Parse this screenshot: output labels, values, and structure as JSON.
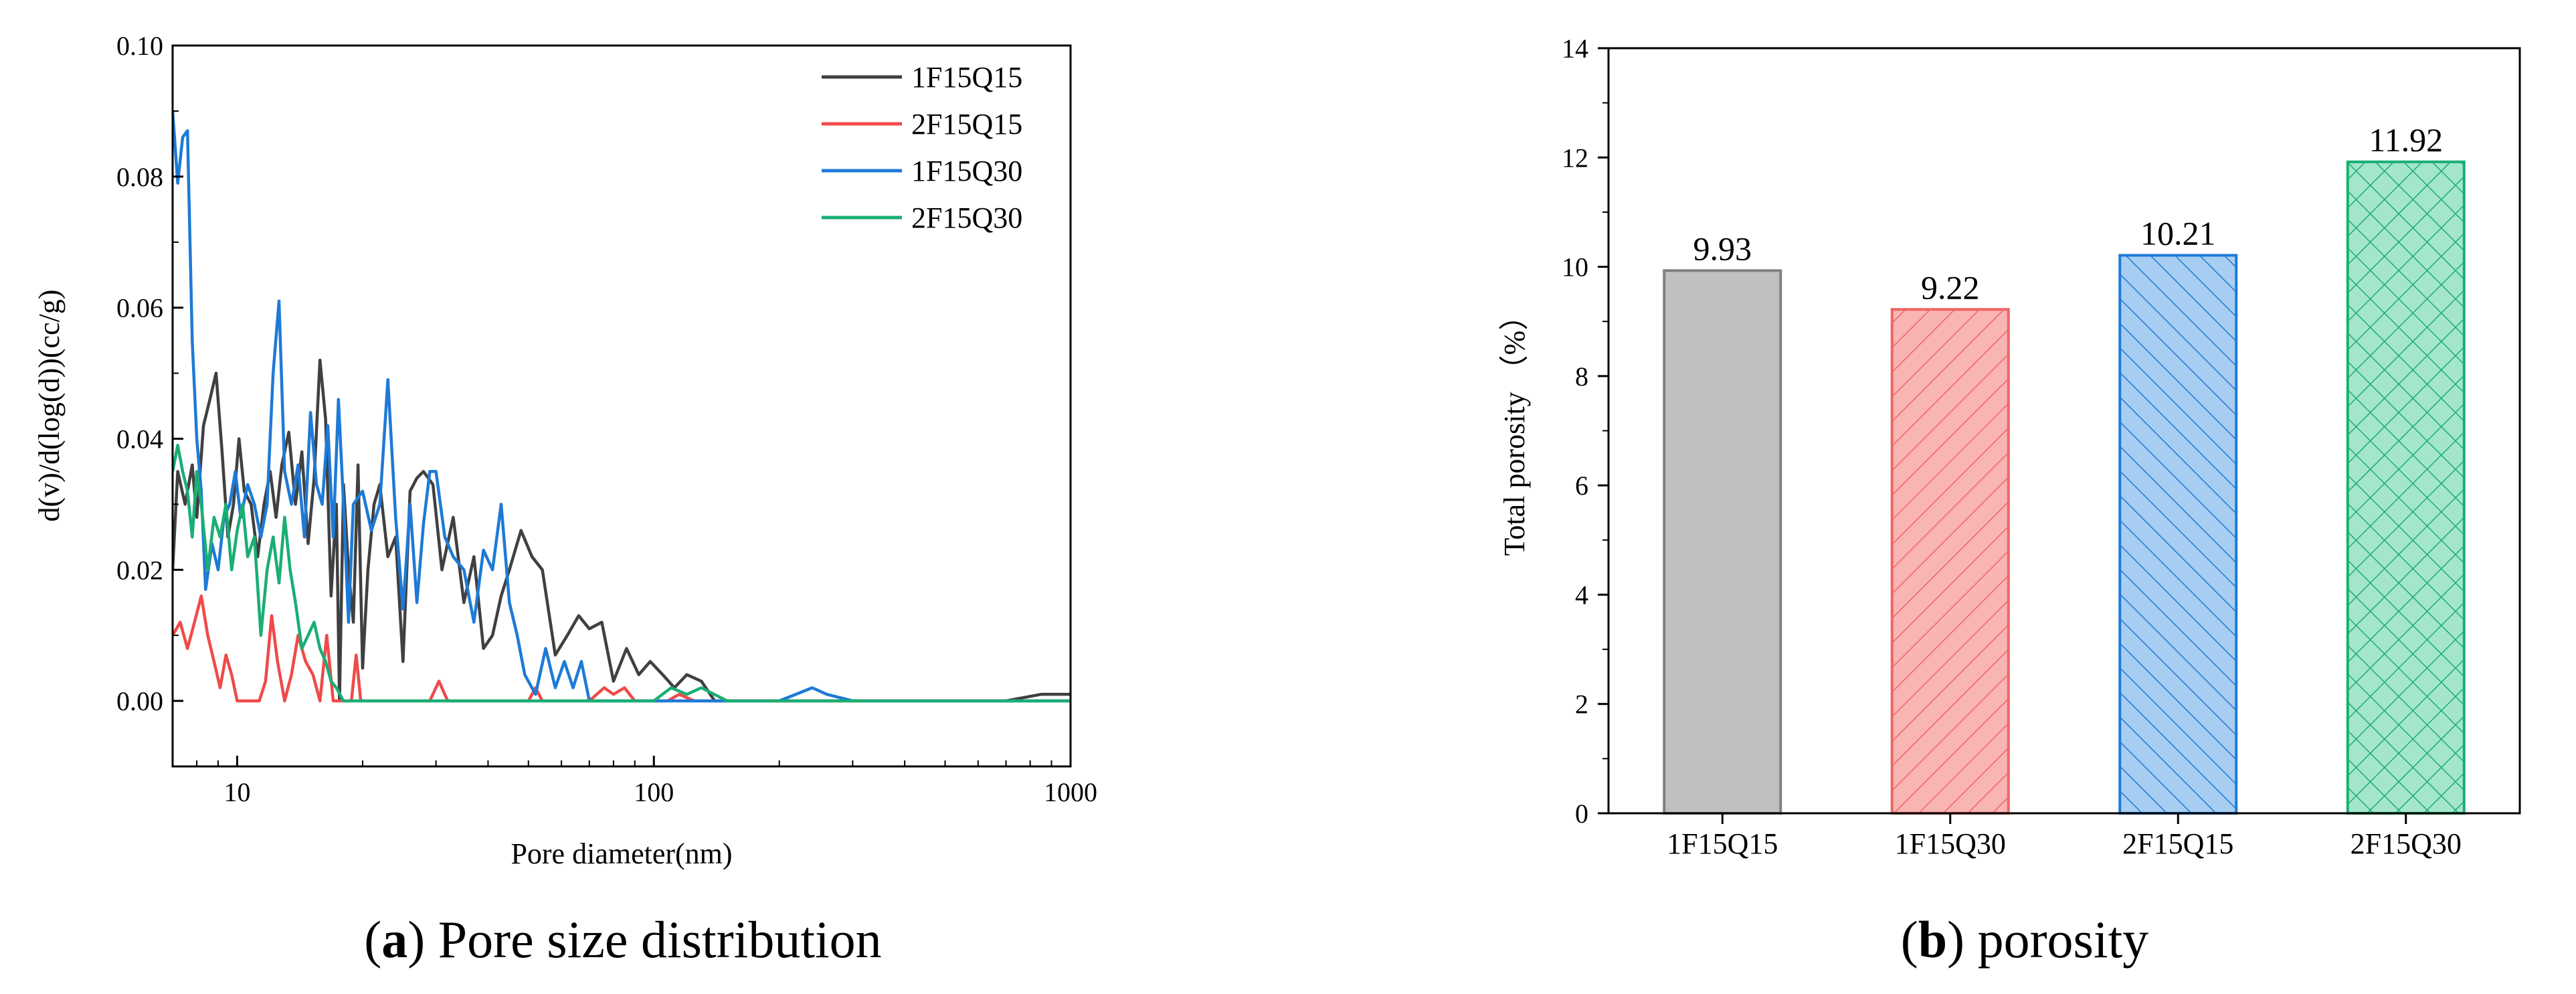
{
  "figure": {
    "colors": {
      "black": "#404040",
      "red": "#f04a4a",
      "blue": "#1e7ad6",
      "green": "#1aae74",
      "gray_fill": "#c0c0c0",
      "gray_edge": "#808080",
      "red_fill": "#f9b4b4",
      "red_edge": "#f06464",
      "blue_fill": "#a8cdf2",
      "blue_edge": "#1e7ad6",
      "green_fill": "#a4e6cc",
      "green_edge": "#1aae74"
    },
    "captions": {
      "a_letter": "a",
      "a_text": ") Pore size distribution",
      "a_open": "(",
      "b_letter": "b",
      "b_text": ") porosity",
      "b_open": "("
    }
  },
  "chart_data": [
    {
      "type": "line",
      "panel": "a",
      "title": "Pore size distribution",
      "xlabel": "Pore diameter(nm)",
      "ylabel": "d(v)/d(log(d))(cc/g)",
      "xscale": "log",
      "xlim": [
        7,
        1000
      ],
      "ylim": [
        -0.01,
        0.1
      ],
      "xticks": [
        10,
        100,
        1000
      ],
      "xtick_labels": [
        "10",
        "100",
        "1000"
      ],
      "yticks": [
        0.0,
        0.02,
        0.04,
        0.06,
        0.08,
        0.1
      ],
      "ytick_labels": [
        "0.00",
        "0.02",
        "0.04",
        "0.06",
        "0.08",
        "0.10"
      ],
      "legend_position": "top-right",
      "series": [
        {
          "name": "1F15Q15",
          "color_key": "black",
          "x": [
            7.0,
            7.2,
            7.5,
            7.8,
            8.0,
            8.3,
            8.6,
            8.9,
            9.2,
            9.5,
            9.8,
            10.1,
            10.4,
            10.8,
            11.2,
            11.6,
            12.0,
            12.4,
            12.8,
            13.3,
            13.8,
            14.3,
            14.8,
            15.3,
            15.8,
            16.3,
            16.8,
            17.3,
            17.6,
            18.0,
            18.5,
            19.0,
            19.5,
            20.0,
            20.6,
            21.3,
            22.0,
            23.0,
            24.0,
            25.0,
            26.0,
            27.0,
            28.0,
            29.5,
            31.0,
            33.0,
            35.0,
            37.0,
            39.0,
            41.0,
            43.0,
            45.0,
            48.0,
            51.0,
            54.0,
            58.0,
            62.0,
            66.0,
            70.0,
            75.0,
            80.0,
            86.0,
            92.0,
            98.0,
            105.0,
            112.0,
            120.0,
            130.0,
            140.0,
            160.0,
            200.0,
            300.0,
            500.0,
            700.0,
            850.0,
            1000.0
          ],
          "y": [
            0.02,
            0.035,
            0.03,
            0.036,
            0.028,
            0.042,
            0.046,
            0.05,
            0.038,
            0.025,
            0.03,
            0.04,
            0.032,
            0.03,
            0.022,
            0.03,
            0.035,
            0.028,
            0.036,
            0.041,
            0.03,
            0.038,
            0.024,
            0.034,
            0.052,
            0.043,
            0.016,
            0.03,
            0.0,
            0.033,
            0.02,
            0.012,
            0.036,
            0.005,
            0.02,
            0.03,
            0.033,
            0.022,
            0.025,
            0.006,
            0.032,
            0.034,
            0.035,
            0.033,
            0.02,
            0.028,
            0.015,
            0.022,
            0.008,
            0.01,
            0.016,
            0.02,
            0.026,
            0.022,
            0.02,
            0.007,
            0.01,
            0.013,
            0.011,
            0.012,
            0.003,
            0.008,
            0.004,
            0.006,
            0.004,
            0.002,
            0.004,
            0.003,
            0.0,
            0.0,
            0.0,
            0.0,
            0.0,
            0.0,
            0.001,
            0.001
          ]
        },
        {
          "name": "2F15Q15",
          "color_key": "red",
          "x": [
            7.0,
            7.3,
            7.6,
            7.9,
            8.2,
            8.5,
            8.8,
            9.1,
            9.4,
            9.7,
            10.0,
            10.4,
            10.8,
            11.3,
            11.7,
            12.1,
            12.5,
            13.0,
            13.5,
            14.0,
            14.6,
            15.2,
            15.8,
            16.4,
            17.0,
            17.6,
            18.2,
            18.8,
            19.3,
            19.8,
            20.3,
            21.0,
            25.0,
            29.0,
            30.5,
            32.0,
            40.0,
            50.0,
            52.0,
            54.0,
            60.0,
            70.0,
            76.0,
            80.0,
            85.0,
            90.0,
            100.0,
            108.0,
            115.0,
            125.0,
            200.0,
            500.0,
            1000.0
          ],
          "y": [
            0.01,
            0.012,
            0.008,
            0.012,
            0.016,
            0.01,
            0.006,
            0.002,
            0.007,
            0.004,
            0.0,
            0.0,
            0.0,
            0.0,
            0.003,
            0.013,
            0.006,
            0.0,
            0.004,
            0.01,
            0.006,
            0.004,
            0.0,
            0.01,
            0.0,
            0.0,
            0.0,
            0.0,
            0.007,
            0.0,
            0.0,
            0.0,
            0.0,
            0.0,
            0.003,
            0.0,
            0.0,
            0.0,
            0.002,
            0.0,
            0.0,
            0.0,
            0.002,
            0.001,
            0.002,
            0.0,
            0.0,
            0.0,
            0.001,
            0.0,
            0.0,
            0.0,
            0.0
          ]
        },
        {
          "name": "1F15Q30",
          "color_key": "blue",
          "x": [
            7.0,
            7.2,
            7.4,
            7.6,
            7.8,
            8.0,
            8.2,
            8.4,
            8.7,
            9.0,
            9.3,
            9.6,
            9.9,
            10.2,
            10.6,
            11.0,
            11.4,
            11.8,
            12.2,
            12.6,
            13.0,
            13.5,
            14.0,
            14.5,
            15.0,
            15.5,
            16.0,
            16.5,
            17.0,
            17.5,
            18.0,
            18.5,
            19.0,
            20.0,
            21.0,
            22.0,
            23.0,
            24.0,
            25.0,
            26.0,
            27.0,
            28.0,
            29.0,
            30.0,
            31.5,
            33.0,
            35.0,
            37.0,
            39.0,
            41.0,
            43.0,
            45.0,
            47.0,
            49.0,
            52.0,
            55.0,
            58.0,
            61.0,
            64.0,
            67.0,
            70.0,
            80.0,
            100.0,
            130.0,
            160.0,
            200.0,
            240.0,
            260.0,
            300.0,
            400.0,
            600.0,
            1000.0
          ],
          "y": [
            0.09,
            0.079,
            0.086,
            0.087,
            0.055,
            0.04,
            0.032,
            0.017,
            0.024,
            0.02,
            0.028,
            0.03,
            0.035,
            0.028,
            0.033,
            0.03,
            0.025,
            0.03,
            0.05,
            0.061,
            0.035,
            0.03,
            0.036,
            0.025,
            0.044,
            0.033,
            0.03,
            0.042,
            0.025,
            0.046,
            0.03,
            0.012,
            0.03,
            0.032,
            0.026,
            0.03,
            0.049,
            0.028,
            0.014,
            0.03,
            0.015,
            0.027,
            0.035,
            0.035,
            0.025,
            0.022,
            0.02,
            0.012,
            0.023,
            0.02,
            0.03,
            0.015,
            0.01,
            0.004,
            0.001,
            0.008,
            0.002,
            0.006,
            0.002,
            0.006,
            0.0,
            0.0,
            0.0,
            0.0,
            0.0,
            0.0,
            0.002,
            0.001,
            0.0,
            0.0,
            0.0,
            0.0
          ]
        },
        {
          "name": "2F15Q30",
          "color_key": "green",
          "x": [
            7.0,
            7.2,
            7.4,
            7.6,
            7.8,
            8.0,
            8.2,
            8.5,
            8.8,
            9.1,
            9.4,
            9.7,
            10.0,
            10.3,
            10.6,
            11.0,
            11.4,
            11.8,
            12.2,
            12.6,
            13.0,
            13.4,
            13.8,
            14.3,
            14.8,
            15.3,
            15.8,
            16.3,
            16.8,
            17.3,
            18.0,
            20.0,
            30.0,
            50.0,
            80.0,
            100.0,
            110.0,
            120.0,
            130.0,
            150.0,
            300.0,
            1000.0
          ],
          "y": [
            0.035,
            0.039,
            0.035,
            0.032,
            0.025,
            0.035,
            0.03,
            0.02,
            0.028,
            0.025,
            0.03,
            0.02,
            0.026,
            0.03,
            0.022,
            0.025,
            0.01,
            0.02,
            0.025,
            0.018,
            0.028,
            0.02,
            0.015,
            0.008,
            0.01,
            0.012,
            0.008,
            0.006,
            0.003,
            0.002,
            0.0,
            0.0,
            0.0,
            0.0,
            0.0,
            0.0,
            0.002,
            0.001,
            0.002,
            0.0,
            0.0,
            0.0
          ]
        }
      ]
    },
    {
      "type": "bar",
      "panel": "b",
      "title": "porosity",
      "xlabel": "",
      "ylabel": "Total porosity （%）",
      "ylim": [
        0,
        14
      ],
      "yticks": [
        0,
        2,
        4,
        6,
        8,
        10,
        12,
        14
      ],
      "ytick_labels": [
        "0",
        "2",
        "4",
        "6",
        "8",
        "10",
        "12",
        "14"
      ],
      "categories": [
        "1F15Q15",
        "1F15Q30",
        "2F15Q15",
        "2F15Q30"
      ],
      "values": [
        9.93,
        9.22,
        10.21,
        11.92
      ],
      "value_labels": [
        "9.93",
        "9.22",
        "10.21",
        "11.92"
      ],
      "patterns": [
        "solid",
        "diagonal",
        "backdiagonal",
        "crosshatch"
      ],
      "fill_keys": [
        "gray_fill",
        "red_fill",
        "blue_fill",
        "green_fill"
      ],
      "edge_keys": [
        "gray_edge",
        "red_edge",
        "blue_edge",
        "green_edge"
      ]
    }
  ]
}
